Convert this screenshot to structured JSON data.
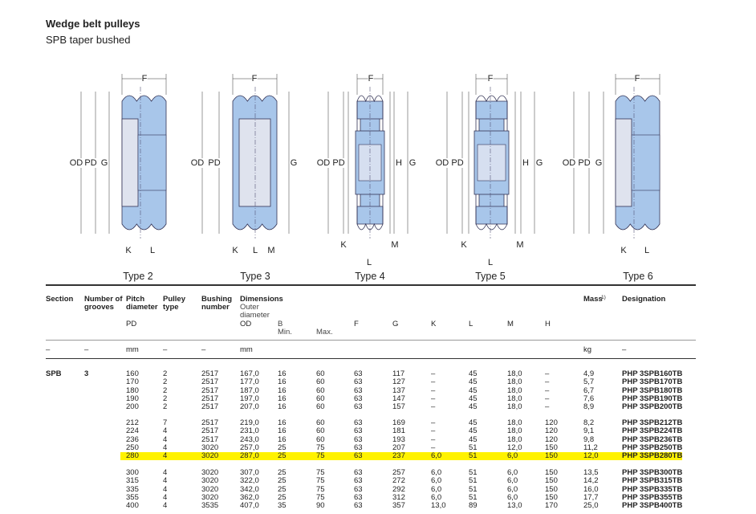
{
  "header": {
    "title": "Wedge belt pulleys",
    "subtitle": "SPB taper bushed"
  },
  "diagrams": [
    {
      "caption": "Type 2",
      "labels": [
        "F",
        "OD",
        "PD",
        "G",
        "K",
        "L"
      ]
    },
    {
      "caption": "Type 3",
      "labels": [
        "F",
        "OD",
        "PD",
        "G",
        "K",
        "L",
        "M"
      ]
    },
    {
      "caption": "Type 4",
      "labels": [
        "F",
        "OD",
        "PD",
        "H",
        "G",
        "K",
        "M",
        "L"
      ]
    },
    {
      "caption": "Type 5",
      "labels": [
        "F",
        "OD",
        "PD",
        "H",
        "G",
        "K",
        "M",
        "L"
      ]
    },
    {
      "caption": "Type 6",
      "labels": [
        "F",
        "OD",
        "PD",
        "G",
        "K",
        "L"
      ]
    }
  ],
  "table": {
    "headers": [
      "Section",
      "Number of grooves",
      "Pitch diameter",
      "Pulley type",
      "Bushing number",
      "Dimensions",
      "Outer diameter",
      "B",
      "Min.",
      "Max.",
      "F",
      "G",
      "K",
      "L",
      "M",
      "H",
      "Mass",
      "1)",
      "Designation",
      "PD",
      "OD"
    ],
    "units": [
      "–",
      "–",
      "mm",
      "–",
      "–",
      "mm",
      "kg",
      "–"
    ],
    "section": "SPB",
    "grooves": "3",
    "groups": [
      [
        [
          "160",
          "2",
          "2517",
          "167,0",
          "16",
          "60",
          "63",
          "117",
          "–",
          "45",
          "18,0",
          "–",
          "4,9",
          "PHP 3SPB160TB"
        ],
        [
          "170",
          "2",
          "2517",
          "177,0",
          "16",
          "60",
          "63",
          "127",
          "–",
          "45",
          "18,0",
          "–",
          "5,7",
          "PHP 3SPB170TB"
        ],
        [
          "180",
          "2",
          "2517",
          "187,0",
          "16",
          "60",
          "63",
          "137",
          "–",
          "45",
          "18,0",
          "–",
          "6,7",
          "PHP 3SPB180TB"
        ],
        [
          "190",
          "2",
          "2517",
          "197,0",
          "16",
          "60",
          "63",
          "147",
          "–",
          "45",
          "18,0",
          "–",
          "7,6",
          "PHP 3SPB190TB"
        ],
        [
          "200",
          "2",
          "2517",
          "207,0",
          "16",
          "60",
          "63",
          "157",
          "–",
          "45",
          "18,0",
          "–",
          "8,9",
          "PHP 3SPB200TB"
        ]
      ],
      [
        [
          "212",
          "7",
          "2517",
          "219,0",
          "16",
          "60",
          "63",
          "169",
          "–",
          "45",
          "18,0",
          "120",
          "8,2",
          "PHP 3SPB212TB"
        ],
        [
          "224",
          "4",
          "2517",
          "231,0",
          "16",
          "60",
          "63",
          "181",
          "–",
          "45",
          "18,0",
          "120",
          "9,1",
          "PHP 3SPB224TB"
        ],
        [
          "236",
          "4",
          "2517",
          "243,0",
          "16",
          "60",
          "63",
          "193",
          "–",
          "45",
          "18,0",
          "120",
          "9,8",
          "PHP 3SPB236TB"
        ],
        [
          "250",
          "4",
          "3020",
          "257,0",
          "25",
          "75",
          "63",
          "207",
          "–",
          "51",
          "12,0",
          "150",
          "11,2",
          "PHP 3SPB250TB"
        ],
        [
          "280",
          "4",
          "3020",
          "287,0",
          "25",
          "75",
          "63",
          "237",
          "6,0",
          "51",
          "6,0",
          "150",
          "12,0",
          "PHP 3SPB280TB"
        ]
      ],
      [
        [
          "300",
          "4",
          "3020",
          "307,0",
          "25",
          "75",
          "63",
          "257",
          "6,0",
          "51",
          "6,0",
          "150",
          "13,5",
          "PHP 3SPB300TB"
        ],
        [
          "315",
          "4",
          "3020",
          "322,0",
          "25",
          "75",
          "63",
          "272",
          "6,0",
          "51",
          "6,0",
          "150",
          "14,2",
          "PHP 3SPB315TB"
        ],
        [
          "335",
          "4",
          "3020",
          "342,0",
          "25",
          "75",
          "63",
          "292",
          "6,0",
          "51",
          "6,0",
          "150",
          "16,0",
          "PHP 3SPB335TB"
        ],
        [
          "355",
          "4",
          "3020",
          "362,0",
          "25",
          "75",
          "63",
          "312",
          "6,0",
          "51",
          "6,0",
          "150",
          "17,7",
          "PHP 3SPB355TB"
        ],
        [
          "400",
          "4",
          "3535",
          "407,0",
          "35",
          "90",
          "63",
          "357",
          "13,0",
          "89",
          "13,0",
          "170",
          "25,0",
          "PHP 3SPB400TB"
        ]
      ]
    ],
    "highlight": [
      1,
      4
    ]
  }
}
